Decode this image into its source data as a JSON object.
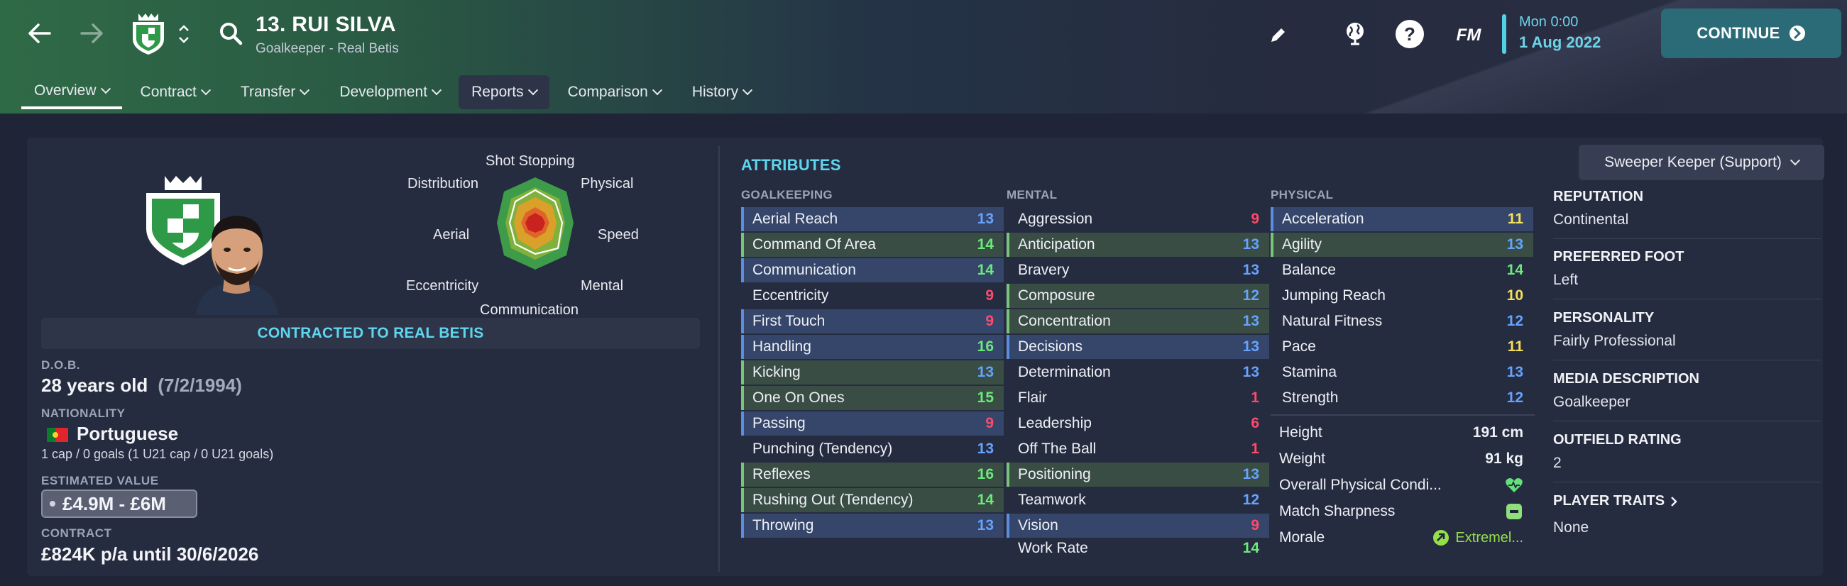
{
  "header": {
    "player_title": "13. RUI SILVA",
    "player_subtitle": "Goalkeeper - Real Betis",
    "time": "Mon 0:00",
    "date": "1 Aug 2022",
    "continue_label": "CONTINUE",
    "help_glyph": "?",
    "fm_label": "FM"
  },
  "tabs": [
    {
      "label": "Overview"
    },
    {
      "label": "Contract"
    },
    {
      "label": "Transfer"
    },
    {
      "label": "Development"
    },
    {
      "label": "Reports"
    },
    {
      "label": "Comparison"
    },
    {
      "label": "History"
    }
  ],
  "radar": {
    "labels": {
      "top": "Shot Stopping",
      "top_left": "Distribution",
      "top_right": "Physical",
      "left": "Aerial",
      "right": "Speed",
      "bottom_left": "Eccentricity",
      "bottom_right": "Mental",
      "bottom": "Communication"
    }
  },
  "profile": {
    "contracted_banner": "CONTRACTED TO REAL BETIS",
    "dob_label": "D.O.B.",
    "age": "28 years old",
    "dob": "(7/2/1994)",
    "nationality_label": "NATIONALITY",
    "nationality": "Portuguese",
    "caps": "1 cap / 0 goals (1 U21 cap / 0 U21 goals)",
    "value_label": "ESTIMATED VALUE",
    "value": "£4.9M - £6M",
    "contract_label": "CONTRACT",
    "contract": "£824K p/a until 30/6/2026"
  },
  "attributes": {
    "title": "ATTRIBUTES",
    "goalkeeping_label": "GOALKEEPING",
    "mental_label": "MENTAL",
    "physical_label": "PHYSICAL",
    "goalkeeping": [
      {
        "name": "Aerial Reach",
        "value": "13"
      },
      {
        "name": "Command Of Area",
        "value": "14"
      },
      {
        "name": "Communication",
        "value": "14"
      },
      {
        "name": "Eccentricity",
        "value": "9"
      },
      {
        "name": "First Touch",
        "value": "9"
      },
      {
        "name": "Handling",
        "value": "16"
      },
      {
        "name": "Kicking",
        "value": "13"
      },
      {
        "name": "One On Ones",
        "value": "15"
      },
      {
        "name": "Passing",
        "value": "9"
      },
      {
        "name": "Punching (Tendency)",
        "value": "13"
      },
      {
        "name": "Reflexes",
        "value": "16"
      },
      {
        "name": "Rushing Out (Tendency)",
        "value": "14"
      },
      {
        "name": "Throwing",
        "value": "13"
      }
    ],
    "mental": [
      {
        "name": "Aggression",
        "value": "9"
      },
      {
        "name": "Anticipation",
        "value": "13"
      },
      {
        "name": "Bravery",
        "value": "13"
      },
      {
        "name": "Composure",
        "value": "12"
      },
      {
        "name": "Concentration",
        "value": "13"
      },
      {
        "name": "Decisions",
        "value": "13"
      },
      {
        "name": "Determination",
        "value": "13"
      },
      {
        "name": "Flair",
        "value": "1"
      },
      {
        "name": "Leadership",
        "value": "6"
      },
      {
        "name": "Off The Ball",
        "value": "1"
      },
      {
        "name": "Positioning",
        "value": "13"
      },
      {
        "name": "Teamwork",
        "value": "12"
      },
      {
        "name": "Vision",
        "value": "9"
      },
      {
        "name": "Work Rate",
        "value": "14"
      }
    ],
    "physical": [
      {
        "name": "Acceleration",
        "value": "11"
      },
      {
        "name": "Agility",
        "value": "13"
      },
      {
        "name": "Balance",
        "value": "14"
      },
      {
        "name": "Jumping Reach",
        "value": "10"
      },
      {
        "name": "Natural Fitness",
        "value": "12"
      },
      {
        "name": "Pace",
        "value": "11"
      },
      {
        "name": "Stamina",
        "value": "13"
      },
      {
        "name": "Strength",
        "value": "12"
      }
    ],
    "physical_info": {
      "height_label": "Height",
      "height": "191 cm",
      "weight_label": "Weight",
      "weight": "91 kg",
      "condition_label": "Overall Physical Condi...",
      "sharpness_label": "Match Sharpness",
      "morale_label": "Morale",
      "morale": "Extremel..."
    }
  },
  "right": {
    "role": "Sweeper Keeper (Support)",
    "reputation_label": "REPUTATION",
    "reputation": "Continental",
    "foot_label": "PREFERRED FOOT",
    "foot": "Left",
    "personality_label": "PERSONALITY",
    "personality": "Fairly Professional",
    "media_label": "MEDIA DESCRIPTION",
    "media": "Goalkeeper",
    "outfield_label": "OUTFIELD RATING",
    "outfield": "2",
    "traits_label": "PLAYER TRAITS",
    "traits": "None"
  },
  "colors": {
    "accent_cyan": "#5fd6ee",
    "continue_bg": "#2b6b78",
    "value_red": "#ff4a6a",
    "value_blue": "#66a3ff",
    "value_green": "#6bea7b",
    "value_yellow": "#f4e05a",
    "crest_green": "#2e9a48"
  }
}
